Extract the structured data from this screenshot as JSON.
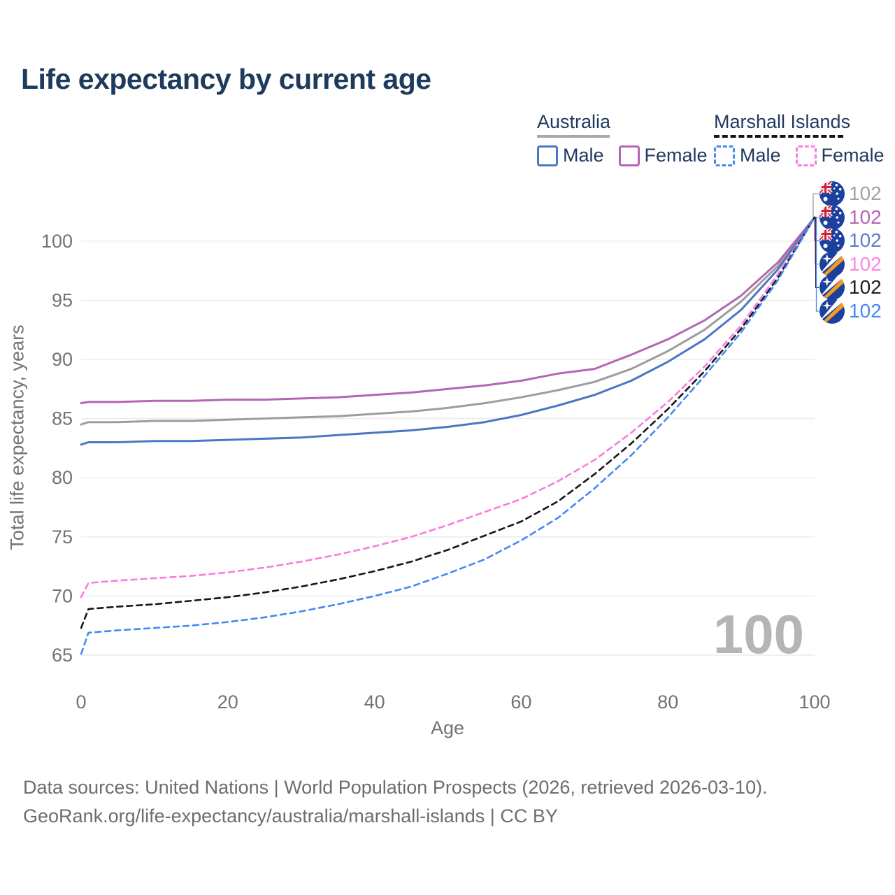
{
  "title": "Life expectancy by current age",
  "legend": {
    "groups": [
      {
        "label": "Australia",
        "line_style": "solid",
        "underline_color": "#a9a9a9",
        "items": [
          {
            "label": "Male",
            "series_id": "australia-male"
          },
          {
            "label": "Female",
            "series_id": "australia-female"
          }
        ]
      },
      {
        "label": "Marshall Islands",
        "line_style": "dashed",
        "underline_color": "#141414",
        "items": [
          {
            "label": "Male",
            "series_id": "marshall-islands-male"
          },
          {
            "label": "Female",
            "series_id": "marshall-islands-female"
          }
        ]
      }
    ]
  },
  "watermark": "100",
  "footer": {
    "line1": "Data sources: United Nations | World Population Prospects (2026, retrieved 2026-03-10).",
    "line2": "GeoRank.org/life-expectancy/australia/marshall-islands | CC BY"
  },
  "colors": {
    "grid": "#ebebeb",
    "axis_text": "#737373",
    "title_text": "#1e3a5c",
    "legend_text": "#1f3a5f",
    "watermark": "#b5b5b5",
    "footer_text": "#6d6d6d"
  },
  "chart_data": {
    "type": "line",
    "title": "Life expectancy by current age",
    "xlabel": "Age",
    "ylabel": "Total life expectancy, years",
    "xlim": [
      0,
      100
    ],
    "ylim": [
      65,
      102
    ],
    "x_ticks": [
      0,
      20,
      40,
      60,
      80,
      100
    ],
    "y_ticks": [
      65,
      70,
      75,
      80,
      85,
      90,
      95,
      100
    ],
    "grid": "horizontal-only",
    "legend_position": "top-right",
    "x": [
      0,
      1,
      5,
      10,
      15,
      20,
      25,
      30,
      35,
      40,
      45,
      50,
      55,
      60,
      65,
      70,
      75,
      80,
      85,
      90,
      95,
      100
    ],
    "series": [
      {
        "id": "australia-total",
        "name": "Australia Total",
        "country": "Australia",
        "sex": "Total",
        "color": "#9d9d9d",
        "line_style": "solid",
        "flag": "australia-flag-icon",
        "end_label": "102",
        "end_label_color": "#a3a3a3",
        "values": [
          84.5,
          84.7,
          84.7,
          84.8,
          84.8,
          84.9,
          85.0,
          85.1,
          85.2,
          85.4,
          85.6,
          85.9,
          86.3,
          86.8,
          87.4,
          88.1,
          89.2,
          90.7,
          92.5,
          94.9,
          97.9,
          102
        ]
      },
      {
        "id": "australia-female",
        "name": "Australia Female",
        "country": "Australia",
        "sex": "Female",
        "color": "#b466b4",
        "line_style": "solid",
        "flag": "australia-flag-icon",
        "end_label": "102",
        "end_label_color": "#b466b4",
        "values": [
          86.3,
          86.4,
          86.4,
          86.5,
          86.5,
          86.6,
          86.6,
          86.7,
          86.8,
          87.0,
          87.2,
          87.5,
          87.8,
          88.2,
          88.8,
          89.2,
          90.4,
          91.7,
          93.3,
          95.4,
          98.2,
          102
        ]
      },
      {
        "id": "australia-male",
        "name": "Australia Male",
        "country": "Australia",
        "sex": "Male",
        "color": "#4b76c4",
        "line_style": "solid",
        "flag": "australia-flag-icon",
        "end_label": "102",
        "end_label_color": "#5c80c4",
        "values": [
          82.8,
          83.0,
          83.0,
          83.1,
          83.1,
          83.2,
          83.3,
          83.4,
          83.6,
          83.8,
          84.0,
          84.3,
          84.7,
          85.3,
          86.1,
          87.0,
          88.2,
          89.8,
          91.7,
          94.2,
          97.6,
          102
        ]
      },
      {
        "id": "marshall-islands-female",
        "name": "Marshall Islands Female",
        "country": "Marshall Islands",
        "sex": "Female",
        "color": "#fb7be0",
        "line_style": "dashed",
        "flag": "marshall-islands-flag-icon",
        "end_label": "102",
        "end_label_color": "#fb85e3",
        "values": [
          69.9,
          71.1,
          71.3,
          71.5,
          71.7,
          72.0,
          72.4,
          72.9,
          73.5,
          74.2,
          75.0,
          76.0,
          77.1,
          78.2,
          79.7,
          81.5,
          83.8,
          86.4,
          89.4,
          92.9,
          97.2,
          102
        ]
      },
      {
        "id": "marshall-islands-total",
        "name": "Marshall Islands Total",
        "country": "Marshall Islands",
        "sex": "Total",
        "color": "#161616",
        "line_style": "dashed",
        "flag": "marshall-islands-flag-icon",
        "end_label": "102",
        "end_label_color": "#1f1f1f",
        "values": [
          67.3,
          68.9,
          69.1,
          69.3,
          69.6,
          69.9,
          70.3,
          70.8,
          71.4,
          72.1,
          72.9,
          73.9,
          75.1,
          76.3,
          78.0,
          80.3,
          82.9,
          85.8,
          89.0,
          92.6,
          96.9,
          102
        ]
      },
      {
        "id": "marshall-islands-male",
        "name": "Marshall Islands Male",
        "country": "Marshall Islands",
        "sex": "Male",
        "color": "#4489f4",
        "line_style": "dashed",
        "flag": "marshall-islands-flag-icon",
        "end_label": "102",
        "end_label_color": "#4489f4",
        "values": [
          65.1,
          66.9,
          67.1,
          67.3,
          67.5,
          67.8,
          68.2,
          68.7,
          69.3,
          70.0,
          70.8,
          71.9,
          73.1,
          74.7,
          76.6,
          79.1,
          81.9,
          85.1,
          88.6,
          92.3,
          96.7,
          102
        ]
      }
    ]
  }
}
